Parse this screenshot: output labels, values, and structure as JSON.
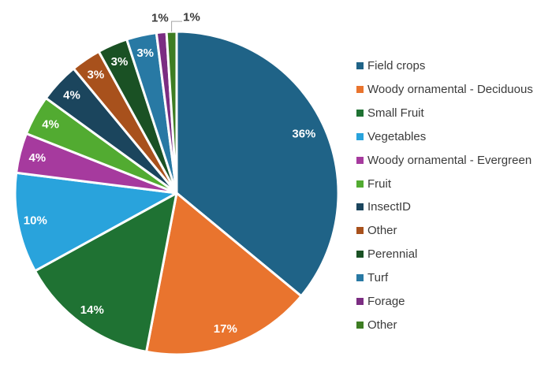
{
  "chart_data": {
    "type": "pie",
    "title": "",
    "legend_position": "right",
    "direction": "clockwise",
    "start_angle_deg": 0,
    "gap_stroke_color": "#ffffff",
    "inside_label_color": "#ffffff",
    "outside_label_color": "#3a3a3a",
    "legend_text_color": "#3b3b3b",
    "leader_line_color": "#a6a6a6",
    "slices": [
      {
        "label": "Field crops",
        "value": 36,
        "display": "36%",
        "color": "#1F6387"
      },
      {
        "label": "Woody ornamental - Deciduous",
        "value": 17,
        "display": "17%",
        "color": "#E9742E"
      },
      {
        "label": "Small Fruit",
        "value": 14,
        "display": "14%",
        "color": "#1F7233"
      },
      {
        "label": "Vegetables",
        "value": 10,
        "display": "10%",
        "color": "#29A3DC"
      },
      {
        "label": "Woody ornamental - Evergreen",
        "value": 4,
        "display": "4%",
        "color": "#A63A9E"
      },
      {
        "label": "Fruit",
        "value": 4,
        "display": "4%",
        "color": "#52AB31"
      },
      {
        "label": "InsectID",
        "value": 4,
        "display": "4%",
        "color": "#1B455D"
      },
      {
        "label": "Other",
        "value": 3,
        "display": "3%",
        "color": "#A8511C"
      },
      {
        "label": "Perennial",
        "value": 3,
        "display": "3%",
        "color": "#1A5124"
      },
      {
        "label": "Turf",
        "value": 3,
        "display": "3%",
        "color": "#2879A4"
      },
      {
        "label": "Forage",
        "value": 1,
        "display": "1%",
        "color": "#7B2D82",
        "label_outside": true
      },
      {
        "label": "Other",
        "value": 1,
        "display": "1%",
        "color": "#3E7D23",
        "label_outside": true,
        "leader_line": true
      }
    ]
  }
}
